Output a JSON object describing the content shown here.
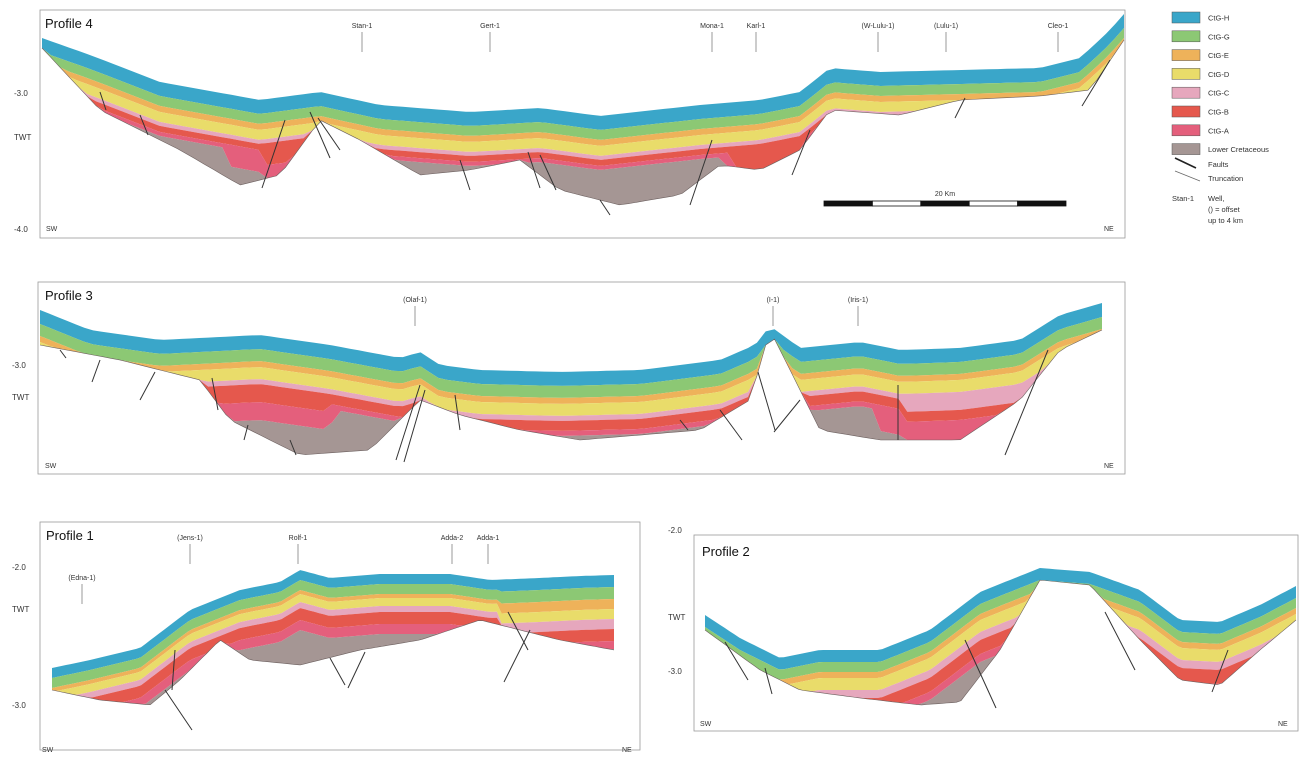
{
  "legend": {
    "units": [
      {
        "label": "CtG-H",
        "color": "#3aa6c9"
      },
      {
        "label": "CtG-G",
        "color": "#8cc874"
      },
      {
        "label": "CtG-E",
        "color": "#eeb25a"
      },
      {
        "label": "CtG-D",
        "color": "#e9dc6a"
      },
      {
        "label": "CtG-C",
        "color": "#e6a7bd"
      },
      {
        "label": "CtG-B",
        "color": "#e5584d"
      },
      {
        "label": "CtG-A",
        "color": "#e45f7c"
      },
      {
        "label": "Lower Cretaceous",
        "color": "#a59694"
      }
    ],
    "faults_label": "Faults",
    "truncation_label": "Truncation",
    "well_symbol_label": "Stan-1",
    "well_text": [
      "Well,",
      "() = offset",
      "up to 4 km"
    ]
  },
  "profiles": {
    "p4": {
      "title": "Profile 4",
      "y_axis": "TWT",
      "ticks": [
        "-3.0",
        "-4.0"
      ],
      "left_end": "SW",
      "right_end": "NE",
      "wells": [
        "Stan-1",
        "Gert-1",
        "Mona-1",
        "Karl-1",
        "(W-Lulu-1)",
        "(Lulu-1)",
        "Cleo-1"
      ],
      "scale_label": "20 Km"
    },
    "p3": {
      "title": "Profile 3",
      "y_axis": "TWT",
      "ticks": [
        "-3.0"
      ],
      "left_end": "SW",
      "right_end": "NE",
      "wells": [
        "(Olaf-1)",
        "(I-1)",
        "(Iris-1)"
      ]
    },
    "p1": {
      "title": "Profile 1",
      "y_axis": "TWT",
      "ticks": [
        "-2.0",
        "-3.0"
      ],
      "left_end": "SW",
      "right_end": "NE",
      "wells": [
        "(Edna-1)",
        "(Jens-1)",
        "Rolf-1",
        "Adda-2",
        "Adda-1"
      ]
    },
    "p2": {
      "title": "Profile 2",
      "y_axis": "TWT",
      "ticks": [
        "-2.0",
        "-3.0"
      ],
      "left_end": "SW",
      "right_end": "NE"
    }
  }
}
